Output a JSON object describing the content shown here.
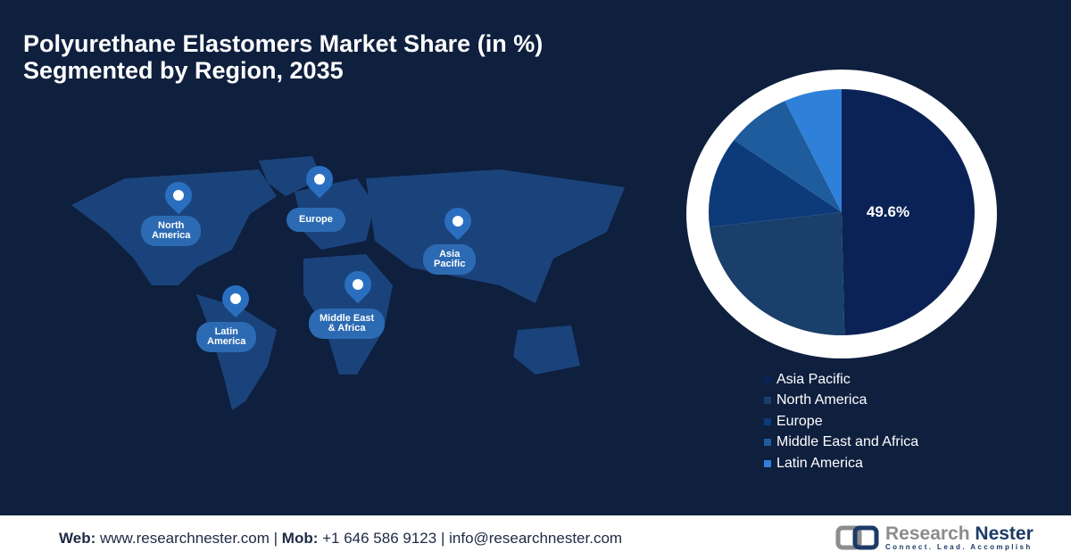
{
  "title_line1": "Polyurethane Elastomers Market Share (in %)",
  "title_line2": "Segmented by Region, 2035",
  "map_labels": {
    "north_america": "North\nAmerica",
    "europe": "Europe",
    "asia_pacific": "Asia\nPacific",
    "latin_america": "Latin\nAmerica",
    "mea": "Middle East\n& Africa"
  },
  "chart_data": {
    "type": "pie",
    "title": "Polyurethane Elastomers Market Share (in %) Segmented by Region, 2035",
    "categories": [
      "Asia Pacific",
      "North America",
      "Europe",
      "Middle East and Africa",
      "Latin America"
    ],
    "values": [
      49.6,
      23.4,
      11.9,
      8.0,
      7.0
    ],
    "colors": [
      "#0b2256",
      "#1a3f6b",
      "#0d3a78",
      "#1f5c9e",
      "#2f80d8"
    ],
    "data_labels": [
      "49.6%",
      "",
      "",
      "",
      ""
    ],
    "legend": "bottom-right"
  },
  "footer": {
    "web_label": "Web:",
    "web": "www.researchnester.com",
    "mob_label": "Mob:",
    "mob": "+1 646 586 9123",
    "email": "info@researchnester.com",
    "sep": "|"
  },
  "logo": {
    "name1": "Research",
    "name2": "Nester",
    "tagline": "Connect. Lead. Accomplish"
  }
}
